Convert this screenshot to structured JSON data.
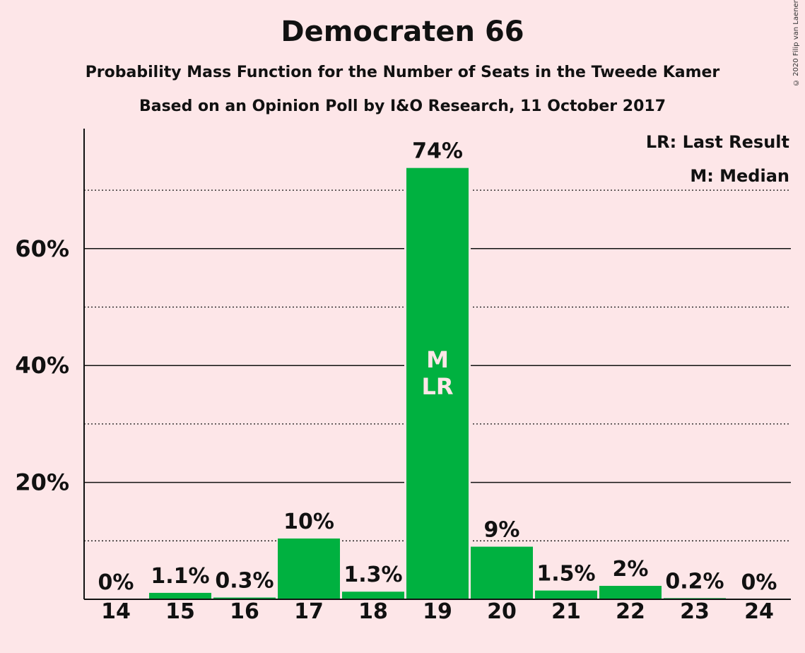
{
  "chart_data": {
    "type": "bar",
    "title": "Democraten 66",
    "subtitle": "Probability Mass Function for the Number of Seats in the Tweede Kamer",
    "subtitle2": "Based on an Opinion Poll by I&O Research, 11 October 2017",
    "copyright": "© 2020 Filip van Laenen",
    "categories": [
      "14",
      "15",
      "16",
      "17",
      "18",
      "19",
      "20",
      "21",
      "22",
      "23",
      "24"
    ],
    "values": [
      0,
      1.1,
      0.3,
      10.4,
      1.3,
      73.8,
      9.0,
      1.5,
      2.3,
      0.2,
      0
    ],
    "data_labels": [
      "0%",
      "1.1%",
      "0.3%",
      "10%",
      "1.3%",
      "74%",
      "9%",
      "1.5%",
      "2%",
      "0.2%",
      "0%"
    ],
    "bar_annotations": {
      "19": [
        "M",
        "LR"
      ]
    },
    "ylim": [
      0,
      80
    ],
    "y_major_ticks": [
      20,
      40,
      60
    ],
    "y_minor_ticks": [
      10,
      30,
      50,
      70
    ],
    "y_tick_labels": [
      "20%",
      "40%",
      "60%"
    ],
    "legend": [
      "LR: Last Result",
      "M: Median"
    ],
    "legend_placement": "top-right",
    "grid": true,
    "bar_color": "#00b140",
    "background_color": "#fde6e8"
  }
}
